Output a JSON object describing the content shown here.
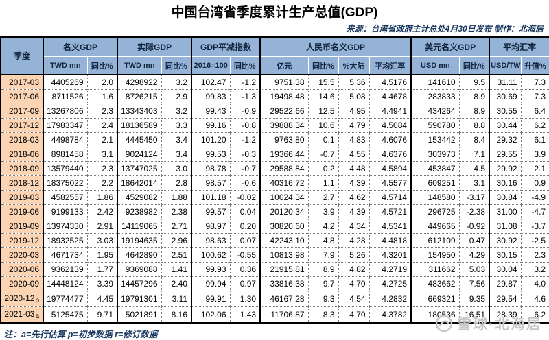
{
  "title": "中国台湾省季度累计生产总值(GDP)",
  "source_note": "来源：台湾省政府主计总处4月30日发布 制作：北海居",
  "footnote": "注：a=先行估算 p=初步数据 r=修订数据",
  "watermark": {
    "logo": "snowball-icon",
    "text": "雪球·北海居"
  },
  "colors": {
    "header_bg": "#95B3D7",
    "quarter_column_bg": "#FBD4B4",
    "negative_value": "#FF0000",
    "note_text": "#17375E"
  },
  "table": {
    "quarter_header": "季度",
    "groups": [
      {
        "label": "名义GDP",
        "subs": [
          "TWD mn",
          "同比%"
        ]
      },
      {
        "label": "实际GDP",
        "subs": [
          "TWD mn",
          "同比%"
        ]
      },
      {
        "label": "GDP平减指数",
        "subs": [
          "2016=100",
          "同比%"
        ]
      },
      {
        "label": "人民币名义GDP",
        "subs": [
          "亿元",
          "同比%",
          "%大陆",
          "平均汇率"
        ]
      },
      {
        "label": "美元名义GDP",
        "subs": [
          "USD mn",
          "同比%"
        ]
      },
      {
        "label": "平均汇率",
        "subs": [
          "USD/TWD",
          "升值%"
        ]
      }
    ],
    "rows": [
      {
        "quarter": "2017-03",
        "suffix": "",
        "values": [
          "4405269",
          "2.0",
          "4298922",
          "3.2",
          "102.47",
          "-1.2",
          "9751.38",
          "15.5",
          "5.36",
          "4.5176",
          "141610",
          "9.5",
          "31.11",
          "7.3"
        ]
      },
      {
        "quarter": "2017-06",
        "suffix": "",
        "values": [
          "8711526",
          "1.6",
          "8726215",
          "2.9",
          "99.83",
          "-1.3",
          "19498.48",
          "14.6",
          "5.08",
          "4.4678",
          "283833",
          "8.9",
          "30.69",
          "7.3"
        ]
      },
      {
        "quarter": "2017-09",
        "suffix": "",
        "values": [
          "13267806",
          "2.3",
          "13343403",
          "3.2",
          "99.43",
          "-0.9",
          "29522.66",
          "12.5",
          "4.95",
          "4.4941",
          "434264",
          "8.9",
          "30.55",
          "6.4"
        ]
      },
      {
        "quarter": "2017-12",
        "suffix": "",
        "values": [
          "17983347",
          "2.4",
          "18136589",
          "3.3",
          "99.16",
          "-0.8",
          "39888.34",
          "10.6",
          "4.79",
          "4.5084",
          "590780",
          "8.8",
          "30.44",
          "6.2"
        ]
      },
      {
        "quarter": "2018-03",
        "suffix": "",
        "values": [
          "4498784",
          "2.1",
          "4445450",
          "3.4",
          "101.20",
          "-1.2",
          "9763.80",
          "0.1",
          "4.83",
          "4.6076",
          "153442",
          "8.4",
          "29.32",
          "6.1"
        ]
      },
      {
        "quarter": "2018-06",
        "suffix": "",
        "values": [
          "8981458",
          "3.1",
          "9024124",
          "3.4",
          "99.53",
          "-0.3",
          "19366.44",
          "-0.7",
          "4.55",
          "4.6376",
          "303973",
          "7.1",
          "29.55",
          "3.9"
        ]
      },
      {
        "quarter": "2018-09",
        "suffix": "",
        "values": [
          "13579440",
          "2.3",
          "13747025",
          "3.0",
          "98.78",
          "-0.7",
          "29588.84",
          "0.2",
          "4.48",
          "4.5894",
          "453847",
          "4.5",
          "29.92",
          "2.1"
        ]
      },
      {
        "quarter": "2018-12",
        "suffix": "",
        "values": [
          "18375022",
          "2.2",
          "18642014",
          "2.8",
          "98.57",
          "-0.6",
          "40316.72",
          "1.1",
          "4.39",
          "4.5577",
          "609251",
          "3.1",
          "30.16",
          "0.9"
        ]
      },
      {
        "quarter": "2019-03",
        "suffix": "",
        "values": [
          "4582557",
          "1.86",
          "4529082",
          "1.88",
          "101.18",
          "-0.02",
          "10024.34",
          "2.7",
          "4.62",
          "4.5714",
          "148580",
          "-3.17",
          "30.84",
          "-4.9"
        ]
      },
      {
        "quarter": "2019-06",
        "suffix": "",
        "values": [
          "9199133",
          "2.42",
          "9238982",
          "2.38",
          "99.57",
          "0.04",
          "20120.34",
          "3.9",
          "4.39",
          "4.5721",
          "296725",
          "-2.38",
          "31.00",
          "-4.7"
        ]
      },
      {
        "quarter": "2019-09",
        "suffix": "",
        "values": [
          "13974330",
          "2.91",
          "14119065",
          "2.71",
          "98.97",
          "0.20",
          "30820.60",
          "4.2",
          "4.34",
          "4.5341",
          "449665",
          "-0.92",
          "31.08",
          "-3.7"
        ]
      },
      {
        "quarter": "2019-12",
        "suffix": "",
        "values": [
          "18932525",
          "3.03",
          "19194635",
          "2.96",
          "98.63",
          "0.07",
          "42243.10",
          "4.8",
          "4.28",
          "4.4818",
          "612109",
          "0.47",
          "30.92",
          "-2.5"
        ]
      },
      {
        "quarter": "2020-03",
        "suffix": "",
        "values": [
          "4671734",
          "1.95",
          "4642890",
          "2.51",
          "100.62",
          "-0.55",
          "10813.98",
          "7.9",
          "5.26",
          "4.3201",
          "154950",
          "4.29",
          "30.15",
          "2.3"
        ]
      },
      {
        "quarter": "2020-06",
        "suffix": "",
        "values": [
          "9362139",
          "1.77",
          "9369088",
          "1.41",
          "99.93",
          "0.36",
          "21915.81",
          "8.9",
          "4.82",
          "4.2719",
          "311662",
          "5.03",
          "30.04",
          "3.2"
        ]
      },
      {
        "quarter": "2020-09",
        "suffix": "",
        "values": [
          "14448124",
          "3.39",
          "14457296",
          "2.40",
          "99.94",
          "0.97",
          "33816.38",
          "9.7",
          "4.70",
          "4.2725",
          "483662",
          "7.56",
          "29.87",
          "4.0"
        ]
      },
      {
        "quarter": "2020-12",
        "suffix": "p",
        "values": [
          "19774477",
          "4.45",
          "19791301",
          "3.11",
          "99.91",
          "1.30",
          "46167.28",
          "9.3",
          "4.54",
          "4.2832",
          "669321",
          "9.35",
          "29.54",
          "4.6"
        ]
      },
      {
        "quarter": "2021-03",
        "suffix": "a",
        "values": [
          "5125475",
          "9.71",
          "5021891",
          "8.16",
          "102.06",
          "1.43",
          "11706.87",
          "8.3",
          "4.70",
          "4.3782",
          "180536",
          "16.51",
          "28.39",
          "6.2"
        ]
      }
    ]
  }
}
